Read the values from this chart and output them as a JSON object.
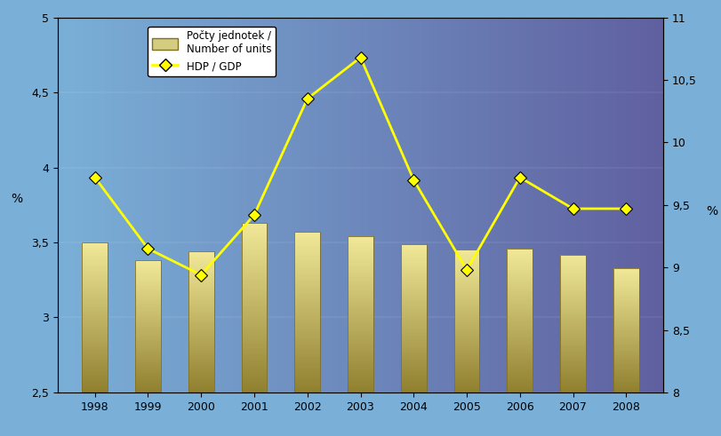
{
  "years": [
    1998,
    1999,
    2000,
    2001,
    2002,
    2003,
    2004,
    2005,
    2006,
    2007,
    2008
  ],
  "bar_values": [
    3.5,
    3.38,
    3.44,
    3.63,
    3.57,
    3.54,
    3.49,
    3.45,
    3.46,
    3.42,
    3.33
  ],
  "line_values": [
    9.72,
    9.15,
    8.94,
    9.42,
    10.35,
    10.68,
    9.7,
    8.98,
    9.72,
    9.47,
    9.47
  ],
  "bar_color_top": "#f0e898",
  "bar_color_bottom": "#908030",
  "line_color": "#ffff00",
  "marker_color": "#ffff00",
  "left_ylim": [
    2.5,
    5.0
  ],
  "right_ylim": [
    8.0,
    11.0
  ],
  "left_yticks": [
    2.5,
    3.0,
    3.5,
    4.0,
    4.5,
    5.0
  ],
  "right_yticks": [
    8.0,
    8.5,
    9.0,
    9.5,
    10.0,
    10.5,
    11.0
  ],
  "bg_color_left": "#7ab0d8",
  "bg_color_right": "#6060a0",
  "border_color": "#44aadd",
  "ylabel_left": "%",
  "ylabel_right": "%",
  "legend_label_bar": "Počty jednotek /\nNumber of units",
  "legend_label_line": "HDP / GDP",
  "legend_bar_color": "#d4cc80",
  "xlim": [
    1997.3,
    2008.7
  ],
  "bar_width": 0.55
}
